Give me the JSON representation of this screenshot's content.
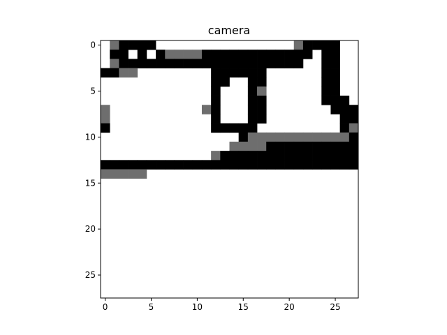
{
  "chart_data": {
    "type": "heatmap",
    "title": "camera",
    "xlabel": "",
    "ylabel": "",
    "xlim": [
      -0.5,
      27.5
    ],
    "ylim": [
      27.5,
      -0.5
    ],
    "colormap": "gray",
    "grid": false,
    "colorbar": false,
    "xticks": [
      0,
      5,
      10,
      15,
      20,
      25
    ],
    "yticks": [
      0,
      5,
      10,
      15,
      20,
      25
    ],
    "xtick_labels": [
      "0",
      "5",
      "10",
      "15",
      "20",
      "25"
    ],
    "ytick_labels": [
      "0",
      "5",
      "10",
      "15",
      "20",
      "25"
    ],
    "levels": {
      "0": "#ffffff",
      "1": "#6e6e6e",
      "2": "#000000"
    },
    "rows": [
      "0122220000000000000001222200",
      "0220202111122222222222202200",
      "0122222222222222222222002200",
      "2211000000002222220000002200",
      "0000000000002200220000002200",
      "0000000000002000210000002200",
      "0000000000002000220000002220",
      "1000000000012000220000000222",
      "1000000000002000220000000022",
      "2000000000002222200000000021",
      "0000000000000002111111111112",
      "0000000000000011112222222222",
      "0000000000001222222222222222",
      "2222222222222222222222222222",
      "1111100000000000000000000000",
      "0000000000000000000000000000",
      "0000000000000000000000000000",
      "0000000000000000000000000000",
      "0000000000000000000000000000",
      "0000000000000000000000000000",
      "0000000000000000000000000000",
      "0000000000000000000000000000",
      "0000000000000000000000000000",
      "0000000000000000000000000000",
      "0000000000000000000000000000",
      "0000000000000000000000000000",
      "0000000000000000000000000000",
      "0000000000000000000000000000"
    ]
  }
}
